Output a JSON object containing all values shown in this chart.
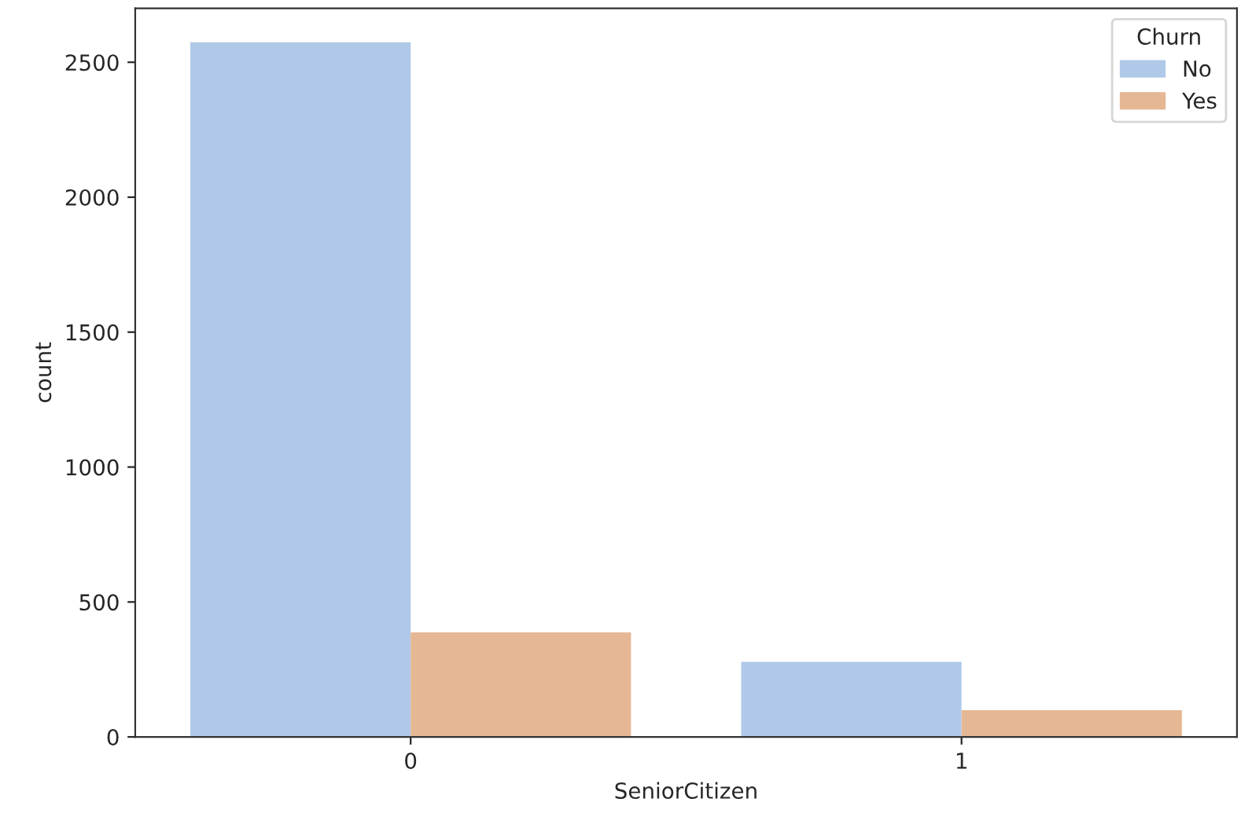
{
  "chart_data": {
    "type": "bar",
    "xlabel": "SeniorCitizen",
    "ylabel": "count",
    "legend_title": "Churn",
    "categories": [
      "0",
      "1"
    ],
    "series": [
      {
        "name": "No",
        "color": "#b0c9e8",
        "values": [
          2574,
          278
        ]
      },
      {
        "name": "Yes",
        "color": "#e6b794",
        "values": [
          387,
          99
        ]
      }
    ],
    "ylim": [
      0,
      2700
    ],
    "yticks": [
      0,
      500,
      1000,
      1500,
      2000,
      2500
    ],
    "legend": "top right",
    "grid": false
  }
}
